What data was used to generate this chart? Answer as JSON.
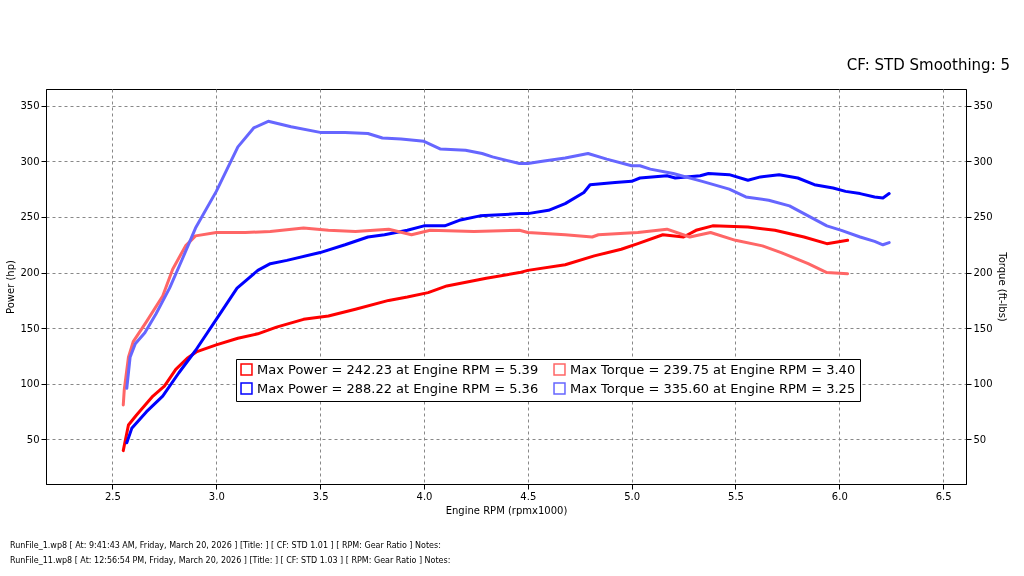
{
  "chart_data": {
    "type": "line",
    "subtitle": "CF: STD Smoothing: 5",
    "xlabel": "Engine RPM (rpmx1000)",
    "ylabel": "Power (hp)",
    "y2label": "Torque (ft-lbs)",
    "xlim": [
      2.18,
      6.61
    ],
    "xticks": [
      2.5,
      {
        "value": 3,
        "label": "3.0"
      },
      3.5,
      {
        "value": 4,
        "label": "4.0"
      },
      4.5,
      {
        "value": 5,
        "label": "5.0"
      },
      5.5,
      {
        "value": 6,
        "label": "6.0"
      },
      6.5
    ],
    "ylim": [
      10,
      365
    ],
    "yticks": [
      50,
      100,
      150,
      200,
      250,
      300,
      350
    ],
    "y2lim": [
      10,
      365
    ],
    "y2ticks": [
      50,
      100,
      150,
      200,
      250,
      300,
      350
    ],
    "grid": true,
    "legend": "bottom",
    "line_style": "solid",
    "series": [
      {
        "name": "Max Power = 242.23 at Engine RPM = 5.39",
        "color": "#ff0000",
        "x": [
          2.552,
          2.577,
          2.616,
          2.695,
          2.75,
          2.805,
          2.86,
          2.907,
          3.0,
          3.104,
          3.2,
          3.29,
          3.42,
          3.54,
          3.67,
          3.83,
          3.92,
          4.02,
          4.11,
          4.3,
          4.46,
          4.5,
          4.68,
          4.82,
          4.95,
          5.03,
          5.15,
          5.25,
          5.31,
          5.39,
          5.56,
          5.69,
          5.83,
          5.94,
          6.04
        ],
        "values": [
          40,
          63,
          72,
          89,
          98,
          113,
          123,
          129,
          135,
          141,
          145,
          151,
          158,
          161,
          167,
          175,
          178,
          182,
          188,
          195,
          200,
          202,
          207,
          215,
          221,
          226,
          234,
          232,
          238,
          242,
          241,
          238,
          232,
          226,
          229
        ]
      },
      {
        "name": "Max Torque = 239.75 at Engine RPM = 3.40",
        "color": "#ff6666",
        "axis": "y2",
        "x": [
          2.552,
          2.557,
          2.577,
          2.6,
          2.664,
          2.742,
          2.79,
          2.852,
          2.9,
          3.0,
          3.14,
          3.26,
          3.42,
          3.54,
          3.67,
          3.83,
          3.94,
          4.03,
          4.24,
          4.46,
          4.5,
          4.68,
          4.81,
          4.84,
          5.03,
          5.17,
          5.28,
          5.38,
          5.5,
          5.63,
          5.72,
          5.85,
          5.94,
          6.04
        ],
        "values": [
          81,
          95,
          124,
          138,
          156,
          179,
          203,
          224,
          233,
          236,
          236,
          237,
          240,
          238,
          237,
          239,
          234,
          238,
          237,
          238,
          236,
          234,
          232,
          234,
          236,
          239,
          232,
          236,
          229,
          224,
          218,
          208,
          200,
          199
        ]
      },
      {
        "name": "Max Power = 288.22 at Engine RPM = 5.36",
        "color": "#0000ff",
        "x": [
          2.569,
          2.593,
          2.664,
          2.742,
          2.82,
          2.9,
          3.0,
          3.1,
          3.2,
          3.26,
          3.34,
          3.5,
          3.62,
          3.73,
          3.81,
          3.92,
          4.0,
          4.1,
          4.17,
          4.27,
          4.46,
          4.5,
          4.6,
          4.68,
          4.77,
          4.8,
          4.92,
          5.0,
          5.04,
          5.17,
          5.21,
          5.33,
          5.37,
          5.47,
          5.56,
          5.62,
          5.71,
          5.8,
          5.88,
          5.97,
          6.03,
          6.1,
          6.17,
          6.21,
          6.24
        ],
        "values": [
          47,
          60,
          75,
          89,
          110,
          130,
          158,
          186,
          202,
          208,
          211,
          218,
          225,
          232,
          234,
          238,
          242,
          242,
          247,
          251,
          253,
          253,
          256,
          262,
          272,
          279,
          281,
          282,
          285,
          287,
          285,
          287,
          289,
          288,
          283,
          286,
          288,
          285,
          279,
          276,
          273,
          271,
          268,
          267,
          271
        ]
      },
      {
        "name": "Max Torque = 335.60 at Engine RPM = 3.25",
        "color": "#6666ff",
        "axis": "y2",
        "x": [
          2.569,
          2.585,
          2.61,
          2.656,
          2.71,
          2.775,
          2.836,
          2.9,
          3.0,
          3.104,
          3.18,
          3.25,
          3.36,
          3.5,
          3.62,
          3.73,
          3.8,
          3.89,
          4.0,
          4.08,
          4.2,
          4.28,
          4.33,
          4.46,
          4.5,
          4.57,
          4.68,
          4.79,
          4.88,
          5.0,
          5.04,
          5.09,
          5.2,
          5.34,
          5.47,
          5.55,
          5.66,
          5.76,
          5.85,
          5.94,
          6.01,
          6.1,
          6.17,
          6.21,
          6.24
        ],
        "values": [
          96,
          124,
          136,
          146,
          163,
          186,
          212,
          240,
          273,
          313,
          330,
          336,
          331,
          326,
          326,
          325,
          321,
          320,
          318,
          311,
          310,
          307,
          304,
          298,
          298,
          300,
          303,
          307,
          302,
          296,
          296,
          293,
          289,
          282,
          275,
          268,
          265,
          260,
          251,
          242,
          238,
          232,
          228,
          225,
          227
        ]
      }
    ],
    "annotations": [
      "RunFile_1.wp8 [ At: 9:41:43 AM, Friday, March 20, 2026 ] [Title: ] [ CF: STD 1.01 ] [ RPM: Gear Ratio ] Notes:",
      "RunFile_11.wp8 [ At: 12:56:54 PM, Friday, March 20, 2026 ] [Title: ] [ CF: STD 1.03 ] [ RPM: Gear Ratio ] Notes:"
    ]
  }
}
